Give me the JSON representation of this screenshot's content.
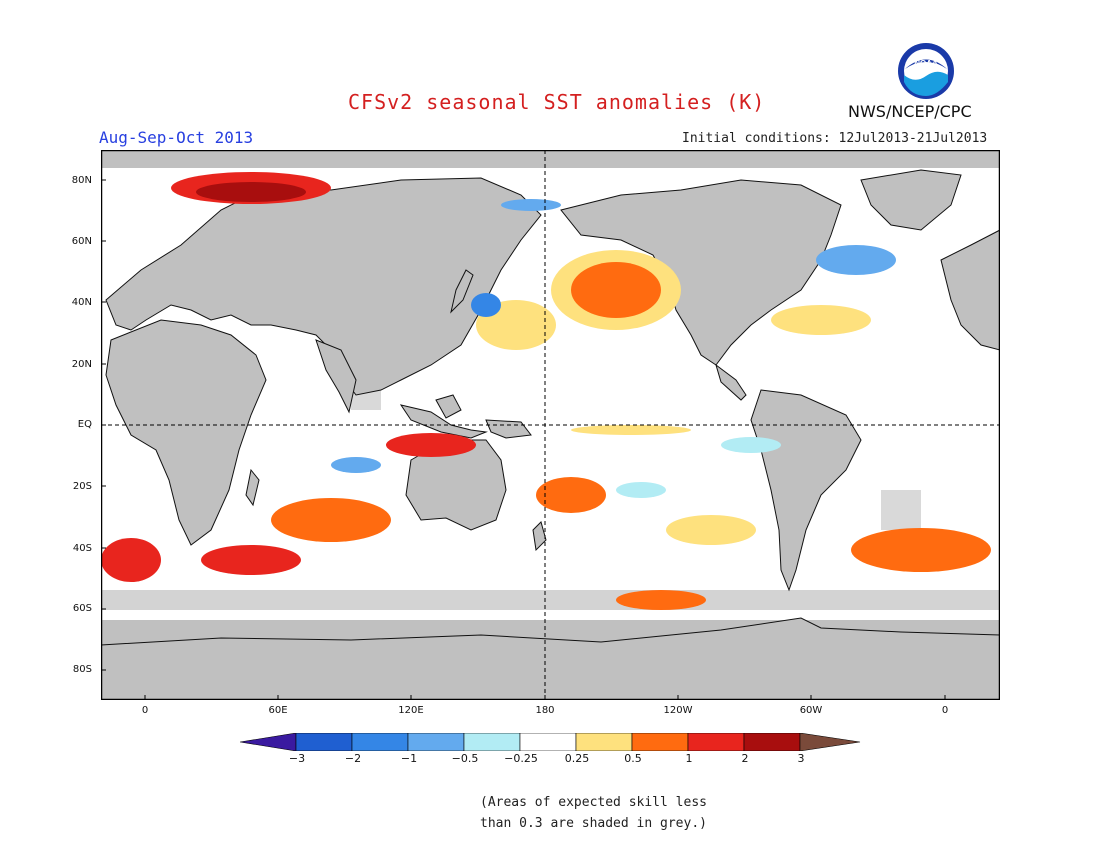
{
  "header": {
    "title": "CFSv2 seasonal SST anomalies (K)",
    "season": "Aug-Sep-Oct 2013",
    "initial_conditions": "Initial conditions: 12Jul2013-21Jul2013",
    "agency": "NWS/NCEP/CPC",
    "logo_text": "NOAA"
  },
  "map": {
    "lat_labels": [
      "80N",
      "60N",
      "40N",
      "20N",
      "EQ",
      "20S",
      "40S",
      "60S",
      "80S"
    ],
    "lon_labels": [
      "0",
      "60E",
      "120E",
      "180",
      "120W",
      "60W",
      "0"
    ],
    "colors": {
      "land": "#c0c0c0",
      "low_skill": "#c0c0c0",
      "ocean_neutral": "#ffffff"
    }
  },
  "colorbar": {
    "ticks": [
      "−3",
      "−2",
      "−1",
      "−0.5",
      "−0.25",
      "0.25",
      "0.5",
      "1",
      "2",
      "3"
    ],
    "colors": [
      "#3a1aa0",
      "#1f5fd1",
      "#3486e6",
      "#63aaee",
      "#b2ecf4",
      "#ffffff",
      "#fee17e",
      "#ff6b10",
      "#e8251e",
      "#a80e0e",
      "#7a4a3a"
    ]
  },
  "note": "(Areas of expected skill less\nthan 0.3 are shaded in grey.)"
}
